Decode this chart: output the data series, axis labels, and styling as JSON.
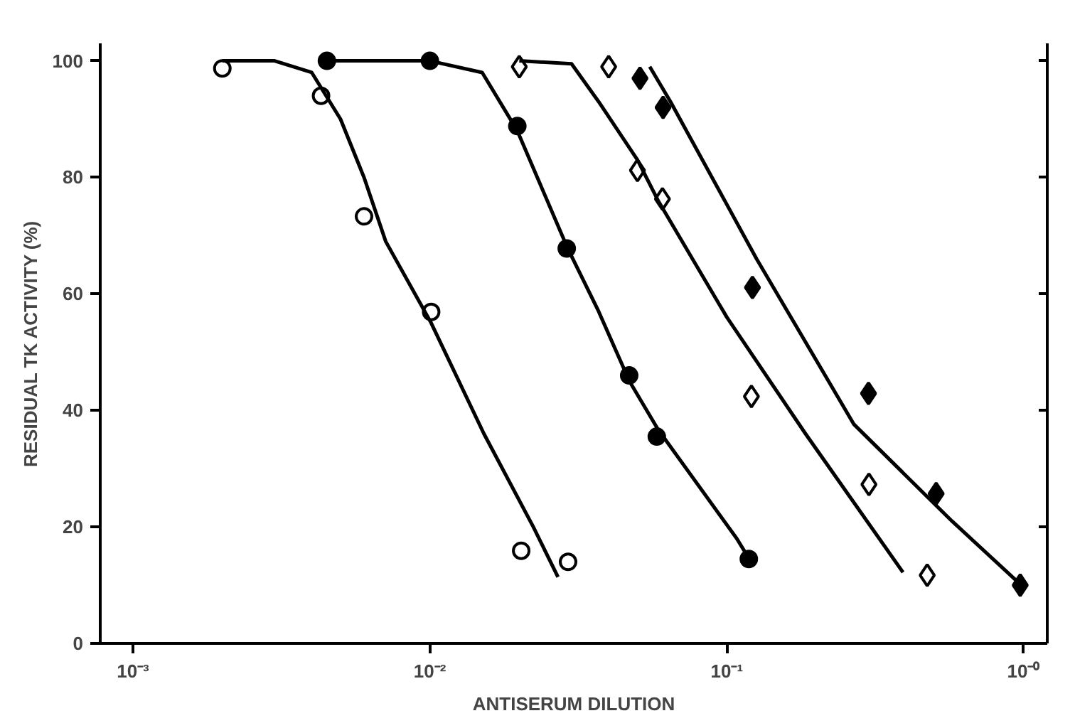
{
  "chart_data": {
    "type": "scatter",
    "xlabel": "ANTISERUM DILUTION",
    "ylabel": "RESIDUAL TK ACTIVITY (%)",
    "log": "x",
    "xlim": [
      0.000776,
      1.2
    ],
    "ylim": [
      0,
      103
    ],
    "xticks": [
      {
        "value": 0.001,
        "label": "10⁻³"
      },
      {
        "value": 0.01,
        "label": "10⁻²"
      },
      {
        "value": 0.1,
        "label": "10⁻¹"
      },
      {
        "value": 1,
        "label": "10⁻⁰"
      }
    ],
    "yticks": [
      0,
      20,
      40,
      60,
      80,
      100
    ],
    "series": [
      {
        "marker": "circle",
        "color": "#ffffff",
        "x": [
          0.002,
          0.0043,
          0.006,
          0.0101,
          0.0203,
          0.0292
        ],
        "values": [
          98.7,
          94,
          73.3,
          56.9,
          15.9,
          14.0
        ]
      },
      {
        "marker": "circle",
        "color": "#000000",
        "x": [
          0.0045,
          0.01,
          0.0197,
          0.0289,
          0.0469,
          0.0581,
          0.1186
        ],
        "values": [
          100,
          100,
          88.8,
          67.8,
          46.0,
          35.5,
          14.5
        ]
      },
      {
        "marker": "diamond",
        "color": "#ffffff",
        "x": [
          0.02,
          0.04,
          0.05,
          0.0607,
          0.121,
          0.301,
          0.473
        ],
        "values": [
          99,
          99,
          81.2,
          76.3,
          42.4,
          27.3,
          11.7
        ]
      },
      {
        "marker": "diamond",
        "color": "#000000",
        "x": [
          0.051,
          0.061,
          0.122,
          0.3,
          0.507,
          0.973
        ],
        "values": [
          97,
          92,
          61.1,
          42.9,
          25.7,
          10.0
        ]
      },
      {
        "type": "line",
        "color": "#000000",
        "x": [
          0.002,
          0.003,
          0.004,
          0.005,
          0.006,
          0.0071,
          0.0101,
          0.0152,
          0.0223,
          0.027
        ],
        "values": [
          100,
          100,
          98,
          90,
          80,
          69,
          55,
          36,
          20,
          11.4
        ]
      },
      {
        "type": "line",
        "color": "#000000",
        "x": [
          0.0045,
          0.01,
          0.015,
          0.0197,
          0.029,
          0.037,
          0.047,
          0.0587,
          0.108,
          0.119
        ],
        "values": [
          100,
          100,
          98,
          88,
          68,
          57,
          45,
          36.7,
          18,
          14.5
        ]
      },
      {
        "type": "line",
        "color": "#000000",
        "x": [
          0.02,
          0.03,
          0.037,
          0.05,
          0.0587,
          0.1,
          0.184,
          0.392
        ],
        "values": [
          100,
          99.5,
          93,
          83,
          76,
          56,
          36,
          12.2
        ]
      },
      {
        "type": "line",
        "color": "#000000",
        "x": [
          0.055,
          0.0646,
          0.126,
          0.268,
          0.573,
          0.99
        ],
        "values": [
          99,
          93,
          66,
          37.6,
          21,
          9.8
        ]
      }
    ]
  }
}
